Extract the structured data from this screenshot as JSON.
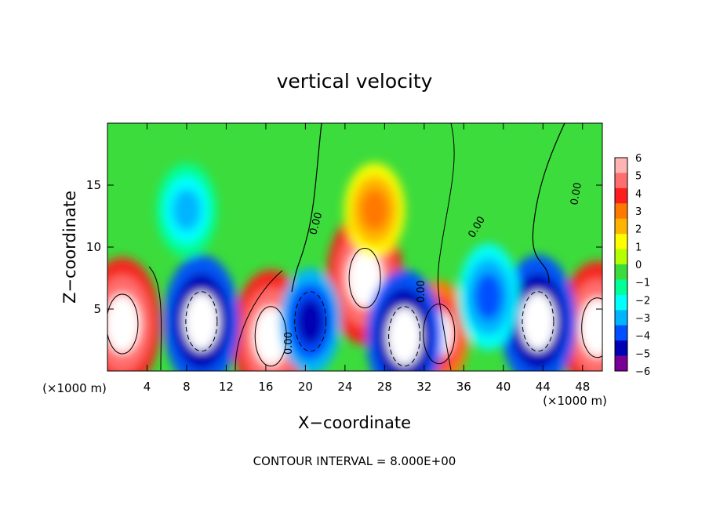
{
  "chart_data": {
    "type": "heatmap",
    "title": "vertical velocity",
    "xlabel": "X−coordinate",
    "ylabel": "Z−coordinate",
    "x_unit_left": "(×1000 m)",
    "x_unit_right": "(×1000 m)",
    "xlim": [
      0,
      50
    ],
    "ylim": [
      0,
      20
    ],
    "x_ticks": [
      4,
      8,
      12,
      16,
      20,
      24,
      28,
      32,
      36,
      40,
      44,
      48
    ],
    "y_ticks": [
      5,
      10,
      15
    ],
    "footer": "CONTOUR INTERVAL = 8.000E+00",
    "contour_labels": [
      "0.00",
      "0.00",
      "0.00",
      "0.00",
      "0.00"
    ],
    "colorbar": {
      "ticks": [
        6,
        5,
        4,
        3,
        2,
        1,
        0,
        "−1",
        "−2",
        "−3",
        "−4",
        "−5",
        "−6"
      ],
      "colors": [
        "#ffb4b4",
        "#ff6e6e",
        "#ff1e1e",
        "#ff7800",
        "#ffb400",
        "#ffff00",
        "#b4ff00",
        "#3cdc3c",
        "#00ff96",
        "#00ffff",
        "#00b4ff",
        "#0050ff",
        "#0000b4",
        "#780096"
      ]
    },
    "features": [
      {
        "kind": "updraft",
        "x": 1.5,
        "z": 3.8,
        "amplitude": 9
      },
      {
        "kind": "updraft",
        "x": 16.5,
        "z": 2.8,
        "amplitude": 9
      },
      {
        "kind": "updraft",
        "x": 26,
        "z": 7.5,
        "amplitude": 10
      },
      {
        "kind": "updraft",
        "x": 33.5,
        "z": 3.0,
        "amplitude": 7
      },
      {
        "kind": "updraft",
        "x": 49.5,
        "z": 3.5,
        "amplitude": 9
      },
      {
        "kind": "downdraft",
        "x": 9.5,
        "z": 4.0,
        "amplitude": -9
      },
      {
        "kind": "downdraft",
        "x": 20.5,
        "z": 4.0,
        "amplitude": -6
      },
      {
        "kind": "downdraft",
        "x": 30.0,
        "z": 2.8,
        "amplitude": -8
      },
      {
        "kind": "downdraft",
        "x": 43.5,
        "z": 4.0,
        "amplitude": -9
      },
      {
        "kind": "downdraft",
        "x": 38.5,
        "z": 6.0,
        "amplitude": -4
      },
      {
        "kind": "downdraft",
        "x": 8.0,
        "z": 13.0,
        "amplitude": -2.5
      },
      {
        "kind": "updraft",
        "x": 27.0,
        "z": 13.0,
        "amplitude": 3.5
      }
    ]
  }
}
